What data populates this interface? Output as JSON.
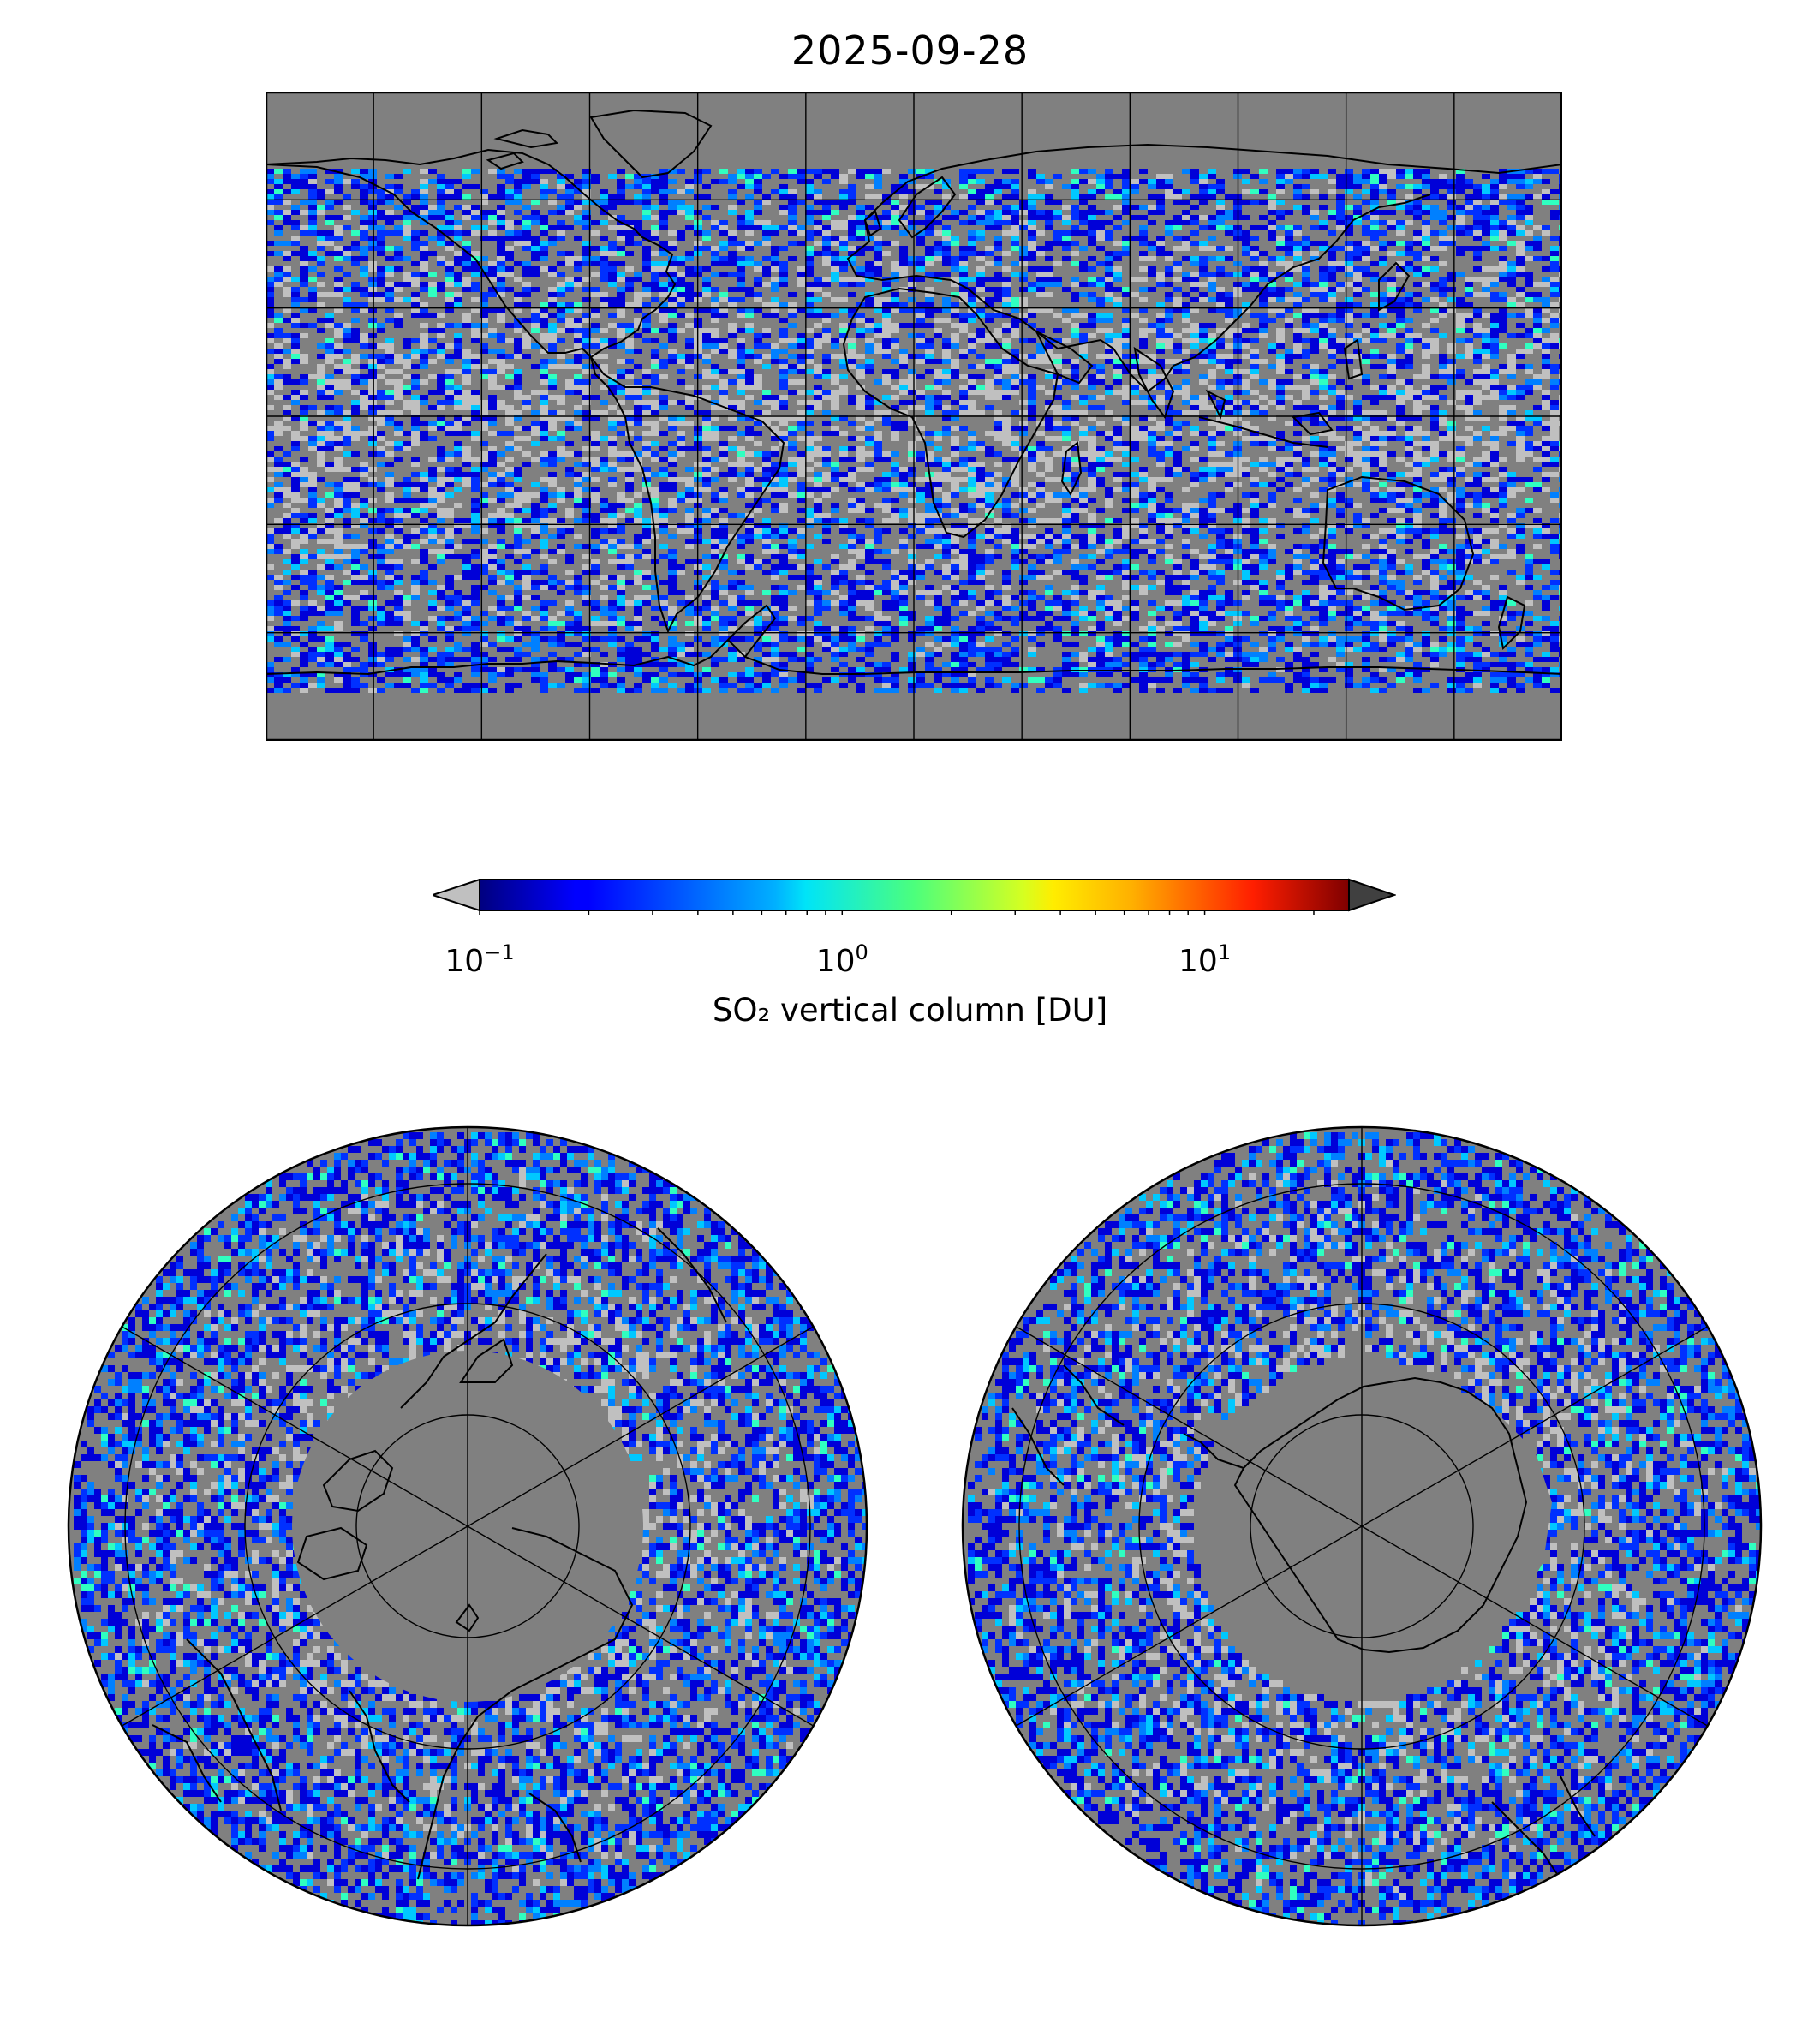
{
  "title": "2025-09-28",
  "colorbar": {
    "label": "SO₂ vertical column [DU]",
    "scale": "log",
    "range": [
      0.1,
      25
    ],
    "colormap": "jet",
    "extend": "both",
    "under_color": "#c0c0c0",
    "over_color": "#404040",
    "ticks": [
      {
        "base": "10",
        "exp": "−1",
        "value": 0.1
      },
      {
        "base": "10",
        "exp": "0",
        "value": 1
      },
      {
        "base": "10",
        "exp": "1",
        "value": 10
      }
    ]
  },
  "maps": {
    "global": {
      "projection": "plate-carree",
      "no_data_color": "#808080",
      "gridlines_lon_step": 30,
      "gridlines_lat_step": 30
    },
    "north": {
      "projection": "north-polar-stereographic",
      "no_data_color": "#808080"
    },
    "south": {
      "projection": "south-polar-stereographic",
      "no_data_color": "#808080"
    }
  }
}
